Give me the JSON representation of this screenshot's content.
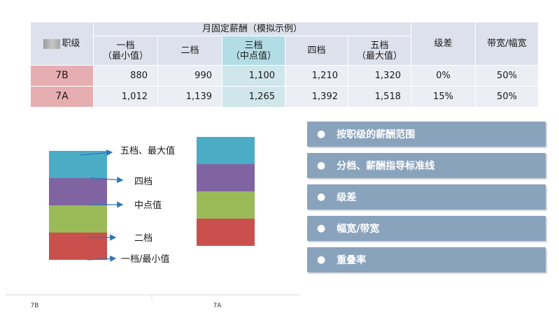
{
  "table": {
    "level_header": "职级",
    "group_header": "月固定薪酬（模拟示例）",
    "bands": [
      {
        "line1": "一档",
        "line2": "（最小值）"
      },
      {
        "line1": "二档",
        "line2": ""
      },
      {
        "line1": "三档",
        "line2": "（中点值）"
      },
      {
        "line1": "四档",
        "line2": ""
      },
      {
        "line1": "五档",
        "line2": "（最大值）"
      }
    ],
    "diff_header": "级差",
    "width_header": "带宽/幅宽",
    "rows": [
      {
        "grade": "7B",
        "values": [
          "880",
          "990",
          "1,100",
          "1,210",
          "1,320"
        ],
        "diff": "0%",
        "width": "50%"
      },
      {
        "grade": "7A",
        "values": [
          "1,012",
          "1,139",
          "1,265",
          "1,392",
          "1,518"
        ],
        "diff": "15%",
        "width": "50%"
      }
    ]
  },
  "chart_data": {
    "type": "bar",
    "stacked": true,
    "categories": [
      "7B",
      "7A"
    ],
    "series": [
      {
        "values": [
          880,
          1012
        ],
        "color": "#c9504d"
      },
      {
        "values": [
          990,
          1139
        ],
        "color": "#9bbb59"
      },
      {
        "values": [
          1100,
          1265
        ],
        "color": "#8064a2"
      },
      {
        "values": [
          1210,
          1392
        ],
        "color": "#4bacc6"
      }
    ],
    "colors": {
      "tier1": "#c9504d",
      "tier2": "#9bbb59",
      "tier3": "#8064a2",
      "tier4": "#4bacc6",
      "arrow": "#2e75b6"
    },
    "annotations": [
      "五档、最大值",
      "四档",
      "中点值",
      "二档",
      "一档/最小值"
    ]
  },
  "points": [
    "按职级的薪酬范围",
    "分档、薪酬指导标准线",
    "级差",
    "幅宽/带宽",
    "重叠率"
  ]
}
